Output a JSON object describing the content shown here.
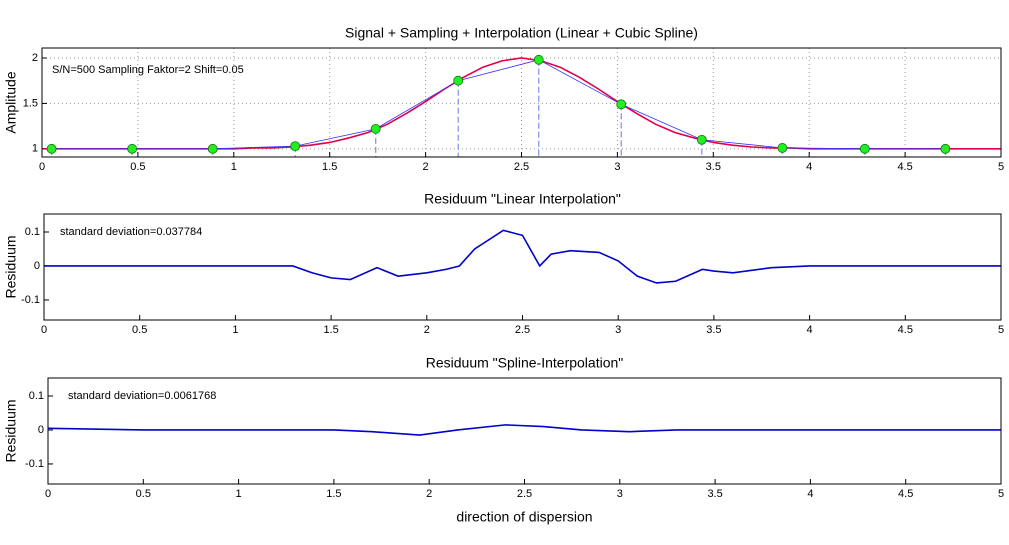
{
  "chart_data": [
    {
      "type": "line",
      "title": "Signal + Sampling + Interpolation (Linear + Cubic Spline)",
      "y_label": "Amplitude",
      "annotation": "S/N=500  Sampling Faktor=2  Shift=0.05",
      "grid": true,
      "xlim": [
        0,
        5
      ],
      "xticks": [
        0,
        0.5,
        1,
        1.5,
        2,
        2.5,
        3,
        3.5,
        4,
        4.5,
        5
      ],
      "ylim": [
        0.91,
        2.11
      ],
      "yticks": [
        1,
        1.5,
        2
      ],
      "x": [
        0,
        0.1,
        0.2,
        0.3,
        0.4,
        0.5,
        0.6,
        0.7,
        0.8,
        0.9,
        1.0,
        1.1,
        1.2,
        1.3,
        1.4,
        1.5,
        1.6,
        1.7,
        1.8,
        1.9,
        2.0,
        2.1,
        2.2,
        2.3,
        2.4,
        2.5,
        2.6,
        2.7,
        2.8,
        2.9,
        3.0,
        3.1,
        3.2,
        3.3,
        3.4,
        3.5,
        3.6,
        3.7,
        3.8,
        3.9,
        4.0,
        4.1,
        4.2,
        4.3,
        4.4,
        4.5,
        4.6,
        4.7,
        4.8,
        4.9,
        5.0
      ],
      "series": [
        {
          "color": "#e0004a",
          "values": [
            1.0,
            1.0,
            1.0,
            1.0,
            1.0,
            1.0,
            1.0,
            1.0,
            1.0,
            1.0,
            1.0,
            1.01,
            1.01,
            1.02,
            1.04,
            1.07,
            1.12,
            1.18,
            1.27,
            1.39,
            1.52,
            1.66,
            1.79,
            1.9,
            1.97,
            2.0,
            1.97,
            1.9,
            1.79,
            1.66,
            1.52,
            1.39,
            1.27,
            1.18,
            1.12,
            1.07,
            1.04,
            1.02,
            1.01,
            1.01,
            1.0,
            1.0,
            1.0,
            1.0,
            1.0,
            1.0,
            1.0,
            1.0,
            1.0,
            1.0,
            1.0
          ]
        }
      ],
      "samples": {
        "x": [
          0.05,
          0.47,
          0.89,
          1.32,
          1.74,
          2.17,
          2.59,
          3.02,
          3.44,
          3.86,
          4.29,
          4.71
        ],
        "values": [
          1.0,
          1.0,
          1.0,
          1.03,
          1.22,
          1.75,
          1.98,
          1.49,
          1.1,
          1.01,
          1.0,
          1.0
        ],
        "color": "#22ee22",
        "line_color": "#3030ff"
      }
    },
    {
      "type": "line",
      "title": "Residuum \"Linear Interpolation\"",
      "y_label": "Residuum",
      "annotation": "standard deviation=0.037784",
      "grid": false,
      "xlim": [
        0,
        5
      ],
      "xticks": [
        0,
        0.5,
        1,
        1.5,
        2,
        2.5,
        3,
        3.5,
        4,
        4.5,
        5
      ],
      "ylim": [
        -0.159,
        0.153
      ],
      "yticks": [
        -0.1,
        0,
        0.1
      ],
      "x": [
        0,
        0.5,
        1.0,
        1.3,
        1.4,
        1.5,
        1.6,
        1.74,
        1.85,
        2.0,
        2.1,
        2.17,
        2.25,
        2.4,
        2.5,
        2.59,
        2.65,
        2.75,
        2.9,
        3.0,
        3.1,
        3.2,
        3.3,
        3.44,
        3.5,
        3.6,
        3.8,
        4.0,
        4.5,
        5.0
      ],
      "series": [
        {
          "color": "#0000cc",
          "values": [
            0,
            0,
            0,
            0,
            -0.02,
            -0.035,
            -0.04,
            -0.005,
            -0.03,
            -0.02,
            -0.01,
            0,
            0.05,
            0.105,
            0.09,
            0,
            0.035,
            0.045,
            0.04,
            0.015,
            -0.03,
            -0.05,
            -0.045,
            -0.01,
            -0.015,
            -0.02,
            -0.005,
            0,
            0,
            0
          ]
        }
      ]
    },
    {
      "type": "line",
      "title": "Residuum \"Spline-Interpolation\"",
      "y_label": "Residuum",
      "x_label": "direction of dispersion",
      "annotation": "standard deviation=0.0061768",
      "grid": false,
      "xlim": [
        0,
        5
      ],
      "xticks": [
        0,
        0.5,
        1,
        1.5,
        2,
        2.5,
        3,
        3.5,
        4,
        4.5,
        5
      ],
      "ylim": [
        -0.159,
        0.153
      ],
      "yticks": [
        -0.1,
        0,
        0.1
      ],
      "x": [
        0,
        0.5,
        1.0,
        1.5,
        1.7,
        1.95,
        2.15,
        2.4,
        2.6,
        2.8,
        3.05,
        3.3,
        4.0,
        5.0
      ],
      "series": [
        {
          "color": "#0000cc",
          "values": [
            0.005,
            0,
            0,
            0,
            -0.005,
            -0.015,
            0,
            0.015,
            0.01,
            0,
            -0.005,
            0,
            0,
            0
          ]
        }
      ]
    }
  ]
}
